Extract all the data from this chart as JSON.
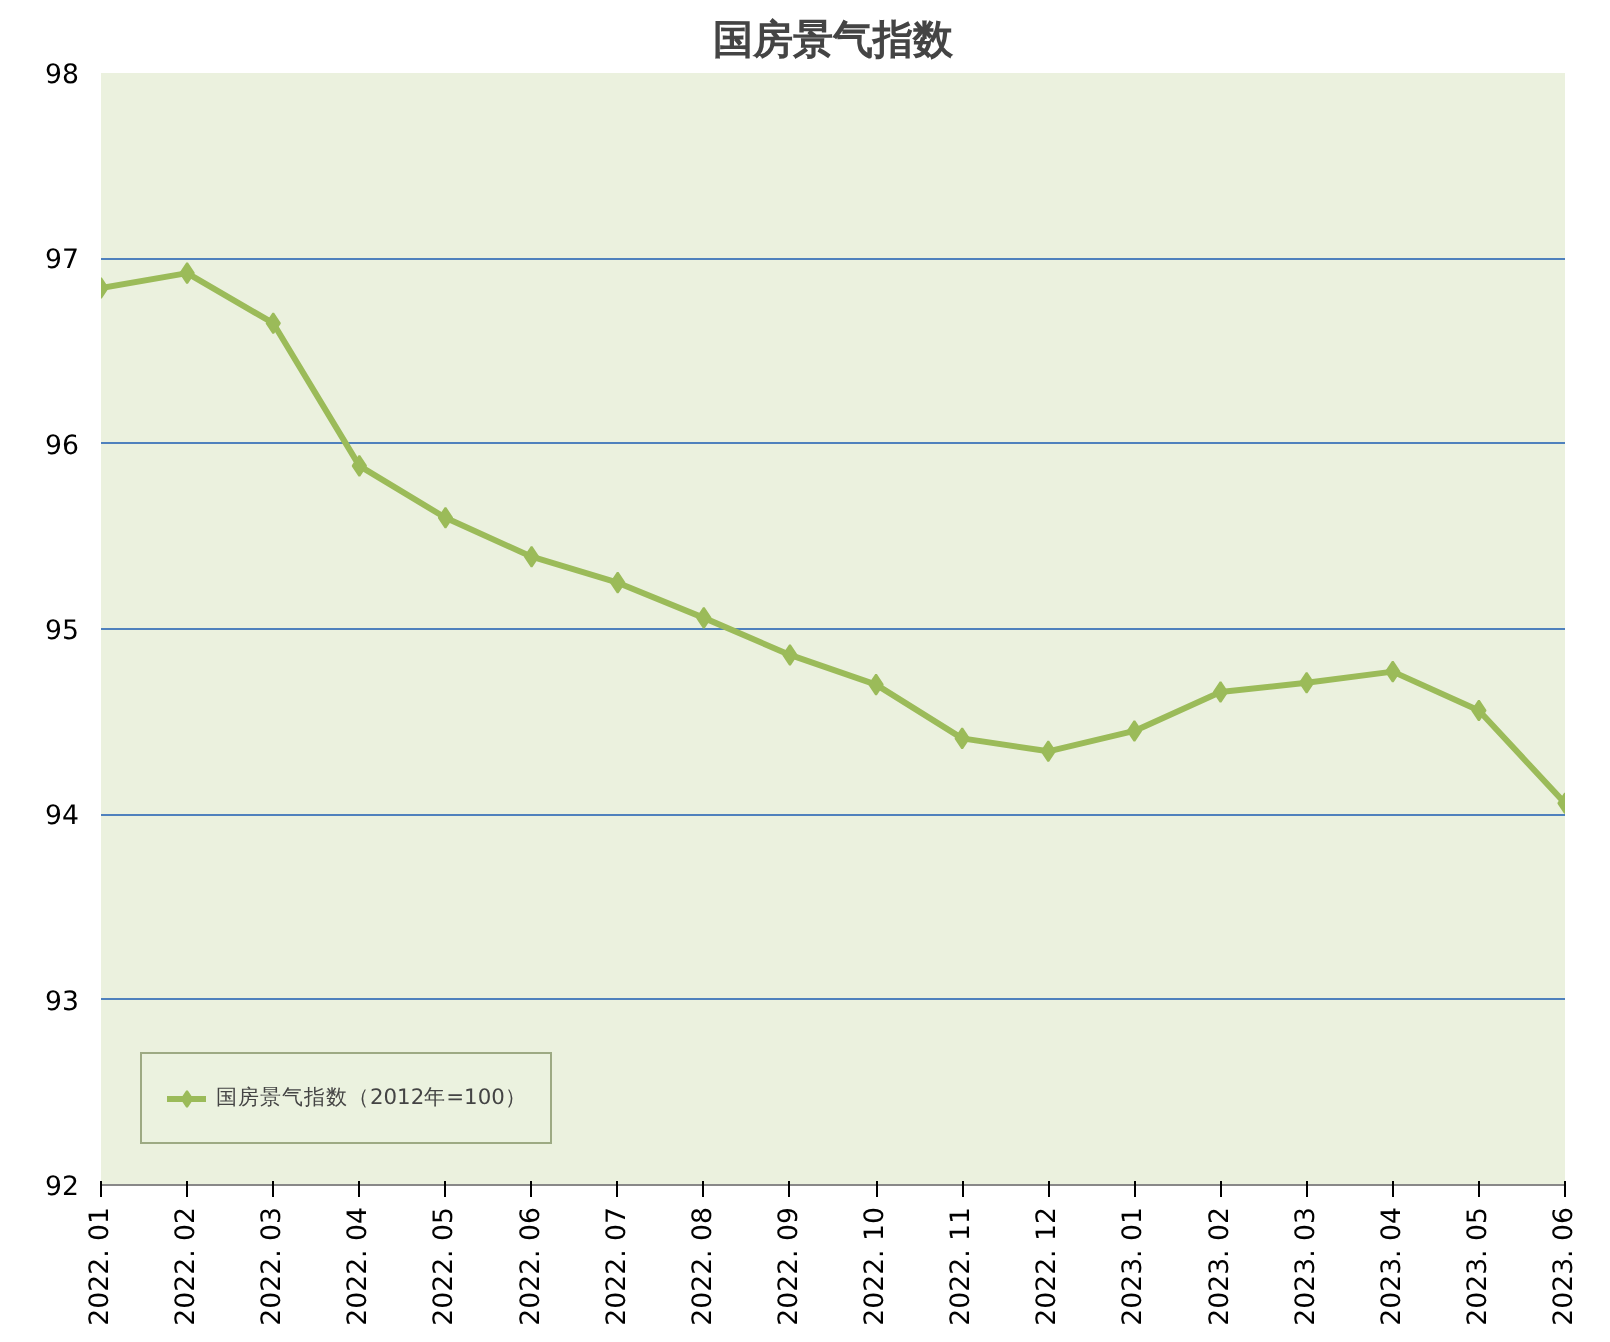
{
  "chart_data": {
    "type": "line",
    "title": "国房景气指数",
    "categories": [
      "2022. 01",
      "2022. 02",
      "2022. 03",
      "2022. 04",
      "2022. 05",
      "2022. 06",
      "2022. 07",
      "2022. 08",
      "2022. 09",
      "2022. 10",
      "2022. 11",
      "2022. 12",
      "2023. 01",
      "2023. 02",
      "2023. 03",
      "2023. 04",
      "2023. 05",
      "2023. 06"
    ],
    "series": [
      {
        "name": "国房景气指数（2012年=100）",
        "color": "#9bbb59",
        "values": [
          96.84,
          96.92,
          96.65,
          95.88,
          95.6,
          95.39,
          95.25,
          95.06,
          94.86,
          94.7,
          94.41,
          94.34,
          94.45,
          94.66,
          94.71,
          94.77,
          94.56,
          94.06
        ]
      }
    ],
    "ylim": [
      92,
      98
    ],
    "yticks": [
      92,
      93,
      94,
      95,
      96,
      97,
      98
    ],
    "grid": "y",
    "legend": "bottom left",
    "marker": "diamond",
    "line_style": "solid"
  }
}
